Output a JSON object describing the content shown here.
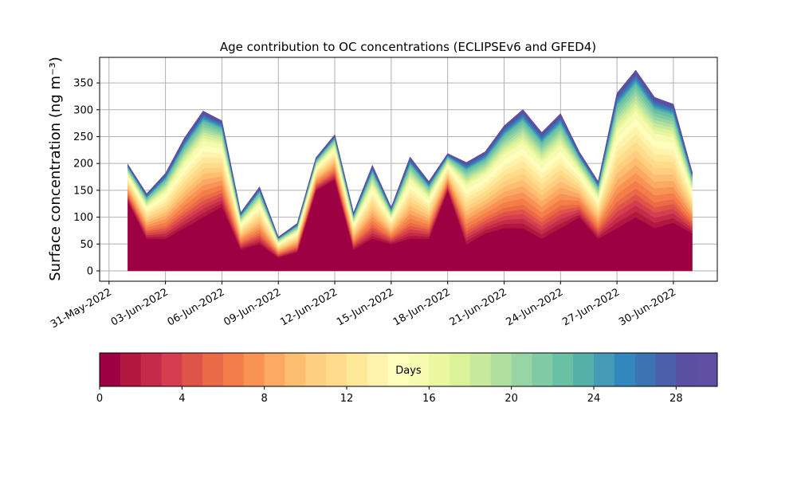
{
  "chart_data": {
    "type": "stacked_area",
    "title": "Age contribution to OC concentrations (ECLIPSEv6 and GFED4)",
    "y_label": "Surface concentration (ng m⁻³)",
    "x": [
      "2022-06-01",
      "2022-06-02",
      "2022-06-03",
      "2022-06-04",
      "2022-06-05",
      "2022-06-06",
      "2022-06-07",
      "2022-06-08",
      "2022-06-09",
      "2022-06-10",
      "2022-06-11",
      "2022-06-12",
      "2022-06-13",
      "2022-06-14",
      "2022-06-15",
      "2022-06-16",
      "2022-06-17",
      "2022-06-18",
      "2022-06-19",
      "2022-06-20",
      "2022-06-21",
      "2022-06-22",
      "2022-06-23",
      "2022-06-24",
      "2022-06-25",
      "2022-06-26",
      "2022-06-27",
      "2022-06-28",
      "2022-06-29",
      "2022-06-30",
      "2022-07-01"
    ],
    "xlim": [
      "2022-05-30T12:00:00Z",
      "2022-07-02T08:00:00Z"
    ],
    "xticks": [
      {
        "value": "2022-05-31",
        "label": "31-May-2022"
      },
      {
        "value": "2022-06-03",
        "label": "03-Jun-2022"
      },
      {
        "value": "2022-06-06",
        "label": "06-Jun-2022"
      },
      {
        "value": "2022-06-09",
        "label": "09-Jun-2022"
      },
      {
        "value": "2022-06-12",
        "label": "12-Jun-2022"
      },
      {
        "value": "2022-06-15",
        "label": "15-Jun-2022"
      },
      {
        "value": "2022-06-18",
        "label": "18-Jun-2022"
      },
      {
        "value": "2022-06-21",
        "label": "21-Jun-2022"
      },
      {
        "value": "2022-06-24",
        "label": "24-Jun-2022"
      },
      {
        "value": "2022-06-27",
        "label": "27-Jun-2022"
      },
      {
        "value": "2022-06-30",
        "label": "30-Jun-2022"
      }
    ],
    "ylim": [
      -19.3,
      397.6
    ],
    "yticks": [
      0,
      50,
      100,
      150,
      200,
      250,
      300,
      350
    ],
    "grid": true,
    "series": [
      {
        "color": "#9e0142",
        "values": [
          130,
          60,
          60,
          80,
          100,
          120,
          40,
          50,
          25,
          35,
          150,
          170,
          40,
          60,
          50,
          60,
          60,
          150,
          50,
          70,
          80,
          80,
          60,
          80,
          100,
          60,
          80,
          100,
          80,
          90,
          70
        ]
      },
      {
        "color": "#b2173f",
        "values": [
          2.7,
          3.3,
          4.8,
          6.6,
          7.8,
          6.3,
          2.7,
          4.2,
          1.5,
          2.1,
          2.4,
          3.3,
          2.7,
          5.4,
          2.7,
          6.0,
          4.2,
          2.7,
          6.0,
          6.0,
          7.5,
          8.7,
          7.8,
          8.4,
          4.8,
          4.2,
          9.9,
          10.8,
          9.6,
          8.7,
          4.5
        ]
      },
      {
        "color": "#c42b4a",
        "values": [
          2.7,
          3.3,
          4.8,
          6.6,
          7.8,
          6.3,
          2.7,
          4.2,
          1.5,
          2.1,
          2.4,
          3.3,
          2.7,
          5.4,
          2.7,
          6.0,
          4.2,
          2.7,
          6.0,
          6.0,
          7.5,
          8.7,
          7.8,
          8.4,
          4.8,
          4.2,
          9.9,
          10.8,
          9.6,
          8.7,
          4.5
        ]
      },
      {
        "color": "#d53e4f",
        "values": [
          2.7,
          3.3,
          4.8,
          6.6,
          7.8,
          6.3,
          2.7,
          4.2,
          1.5,
          2.1,
          2.4,
          3.3,
          2.7,
          5.4,
          2.7,
          6.0,
          4.2,
          2.7,
          6.0,
          6.0,
          7.5,
          8.7,
          7.8,
          8.4,
          4.8,
          4.2,
          9.9,
          10.8,
          9.6,
          8.7,
          4.5
        ]
      },
      {
        "color": "#e05347",
        "values": [
          2.7,
          3.3,
          4.8,
          6.6,
          7.8,
          6.3,
          2.7,
          4.2,
          1.5,
          2.1,
          2.4,
          3.3,
          2.7,
          5.4,
          2.7,
          6.0,
          4.2,
          2.7,
          6.0,
          6.0,
          7.5,
          8.7,
          7.8,
          8.4,
          4.8,
          4.2,
          9.9,
          10.8,
          9.6,
          8.7,
          4.5
        ]
      },
      {
        "color": "#ea6a47",
        "values": [
          2.7,
          3.3,
          4.8,
          6.6,
          7.8,
          6.3,
          2.7,
          4.2,
          1.5,
          2.1,
          2.4,
          3.3,
          2.7,
          5.4,
          2.7,
          6.0,
          4.2,
          2.7,
          6.0,
          6.0,
          7.5,
          8.7,
          7.8,
          8.4,
          4.8,
          4.2,
          9.9,
          10.8,
          9.6,
          8.7,
          4.5
        ]
      },
      {
        "color": "#f57d4a",
        "values": [
          3.6,
          4.4,
          6.4,
          8.8,
          10.4,
          8.4,
          3.6,
          5.6,
          2.0,
          2.8,
          3.2,
          4.4,
          3.6,
          7.2,
          3.6,
          8.0,
          5.6,
          3.6,
          8.0,
          8.0,
          10.0,
          11.6,
          10.4,
          11.2,
          6.4,
          5.6,
          13.2,
          14.4,
          12.8,
          11.6,
          6.0
        ]
      },
      {
        "color": "#f89355",
        "values": [
          3.6,
          4.4,
          6.4,
          8.8,
          10.4,
          8.4,
          3.6,
          5.6,
          2.0,
          2.8,
          3.2,
          4.4,
          3.6,
          7.2,
          3.6,
          8.0,
          5.6,
          3.6,
          8.0,
          8.0,
          10.0,
          11.6,
          10.4,
          11.2,
          6.4,
          5.6,
          13.2,
          14.4,
          12.8,
          11.6,
          6.0
        ]
      },
      {
        "color": "#fca965",
        "values": [
          3.6,
          4.4,
          6.4,
          8.8,
          10.4,
          8.4,
          3.6,
          5.6,
          2.0,
          2.8,
          3.2,
          4.4,
          3.6,
          7.2,
          3.6,
          8.0,
          5.6,
          3.6,
          8.0,
          8.0,
          10.0,
          11.6,
          10.4,
          11.2,
          6.4,
          5.6,
          13.2,
          14.4,
          12.8,
          11.6,
          6.0
        ]
      },
      {
        "color": "#fdbe71",
        "values": [
          3.6,
          4.4,
          6.4,
          8.8,
          10.4,
          8.4,
          3.6,
          5.6,
          2.0,
          2.8,
          3.2,
          4.4,
          3.6,
          7.2,
          3.6,
          8.0,
          5.6,
          3.6,
          8.0,
          8.0,
          10.0,
          11.6,
          10.4,
          11.2,
          6.4,
          5.6,
          13.2,
          14.4,
          12.8,
          11.6,
          6.0
        ]
      },
      {
        "color": "#fecf80",
        "values": [
          3.6,
          4.4,
          6.4,
          8.8,
          10.4,
          8.4,
          3.6,
          5.6,
          2.0,
          2.8,
          3.2,
          4.4,
          3.6,
          7.2,
          3.6,
          8.0,
          5.6,
          3.6,
          8.0,
          8.0,
          10.0,
          11.6,
          10.4,
          11.2,
          6.4,
          5.6,
          13.2,
          14.4,
          12.8,
          11.6,
          6.0
        ]
      },
      {
        "color": "#fedc8c",
        "values": [
          3.6,
          4.4,
          6.4,
          8.8,
          10.4,
          8.4,
          3.6,
          5.6,
          2.0,
          2.8,
          3.2,
          4.4,
          3.6,
          7.2,
          3.6,
          8.0,
          5.6,
          3.6,
          8.0,
          8.0,
          10.0,
          11.6,
          10.4,
          11.2,
          6.4,
          5.6,
          13.2,
          14.4,
          12.8,
          11.6,
          6.0
        ]
      },
      {
        "color": "#fee89a",
        "values": [
          3.6,
          4.4,
          6.4,
          8.8,
          10.4,
          8.4,
          3.6,
          5.6,
          2.0,
          2.8,
          3.2,
          4.4,
          3.6,
          7.2,
          3.6,
          8.0,
          5.6,
          3.6,
          8.0,
          8.0,
          10.0,
          11.6,
          10.4,
          11.2,
          6.4,
          5.6,
          13.2,
          14.4,
          12.8,
          11.6,
          6.0
        ]
      },
      {
        "color": "#fff3ad",
        "values": [
          3.6,
          4.4,
          6.4,
          8.8,
          10.4,
          8.4,
          3.6,
          5.6,
          2.0,
          2.8,
          3.2,
          4.4,
          3.6,
          7.2,
          3.6,
          8.0,
          5.6,
          3.6,
          8.0,
          8.0,
          10.0,
          11.6,
          10.4,
          11.2,
          6.4,
          5.6,
          13.2,
          14.4,
          12.8,
          11.6,
          6.0
        ]
      },
      {
        "color": "#fefebd",
        "values": [
          3.6,
          4.4,
          6.4,
          8.8,
          10.4,
          8.4,
          3.6,
          5.6,
          2.0,
          2.8,
          3.2,
          4.4,
          3.6,
          7.2,
          3.6,
          8.0,
          5.6,
          3.6,
          8.0,
          8.0,
          10.0,
          11.6,
          10.4,
          11.2,
          6.4,
          5.6,
          13.2,
          14.4,
          12.8,
          11.6,
          6.0
        ]
      },
      {
        "color": "#f7fbb2",
        "values": [
          3.6,
          4.4,
          6.4,
          8.8,
          10.4,
          8.4,
          3.6,
          5.6,
          2.0,
          2.8,
          3.2,
          4.4,
          3.6,
          7.2,
          3.6,
          8.0,
          5.6,
          3.6,
          8.0,
          8.0,
          10.0,
          11.6,
          10.4,
          11.2,
          6.4,
          5.6,
          13.2,
          14.4,
          12.8,
          11.6,
          6.0
        ]
      },
      {
        "color": "#eaf79e",
        "values": [
          1.8,
          2.2,
          3.2,
          4.4,
          5.2,
          4.2,
          1.8,
          2.8,
          1.0,
          1.4,
          1.6,
          2.2,
          1.8,
          3.6,
          1.8,
          4.0,
          2.8,
          1.8,
          4.0,
          4.0,
          5.0,
          5.8,
          5.2,
          5.6,
          3.2,
          2.8,
          6.6,
          7.2,
          6.4,
          5.8,
          3.0
        ]
      },
      {
        "color": "#dbf19a",
        "values": [
          1.8,
          2.2,
          3.2,
          4.4,
          5.2,
          4.2,
          1.8,
          2.8,
          1.0,
          1.4,
          1.6,
          2.2,
          1.8,
          3.6,
          1.8,
          4.0,
          2.8,
          1.8,
          4.0,
          4.0,
          5.0,
          5.8,
          5.2,
          5.6,
          3.2,
          2.8,
          6.6,
          7.2,
          6.4,
          5.8,
          3.0
        ]
      },
      {
        "color": "#c7e99e",
        "values": [
          1.8,
          2.2,
          3.2,
          4.4,
          5.2,
          4.2,
          1.8,
          2.8,
          1.0,
          1.4,
          1.6,
          2.2,
          1.8,
          3.6,
          1.8,
          4.0,
          2.8,
          1.8,
          4.0,
          4.0,
          5.0,
          5.8,
          5.2,
          5.6,
          3.2,
          2.8,
          6.6,
          7.2,
          6.4,
          5.8,
          3.0
        ]
      },
      {
        "color": "#b1df9e",
        "values": [
          1.8,
          2.2,
          3.2,
          4.4,
          5.2,
          4.2,
          1.8,
          2.8,
          1.0,
          1.4,
          1.6,
          2.2,
          1.8,
          3.6,
          1.8,
          4.0,
          2.8,
          1.8,
          4.0,
          4.0,
          5.0,
          5.8,
          5.2,
          5.6,
          3.2,
          2.8,
          6.6,
          7.2,
          6.4,
          5.8,
          3.0
        ]
      },
      {
        "color": "#98d5a4",
        "values": [
          1.8,
          2.2,
          3.2,
          4.4,
          5.2,
          4.2,
          1.8,
          2.8,
          1.0,
          1.4,
          1.6,
          2.2,
          1.8,
          3.6,
          1.8,
          4.0,
          2.8,
          1.8,
          4.0,
          4.0,
          5.0,
          5.8,
          5.2,
          5.6,
          3.2,
          2.8,
          6.6,
          7.2,
          6.4,
          5.8,
          3.0
        ]
      },
      {
        "color": "#80cba4",
        "values": [
          1.8,
          2.2,
          3.2,
          4.4,
          5.2,
          4.2,
          1.8,
          2.8,
          1.0,
          1.4,
          1.6,
          2.2,
          1.8,
          3.6,
          1.8,
          4.0,
          2.8,
          1.8,
          4.0,
          4.0,
          5.0,
          5.8,
          5.2,
          5.6,
          3.2,
          2.8,
          6.6,
          7.2,
          6.4,
          5.8,
          3.0
        ]
      },
      {
        "color": "#69c0a5",
        "values": [
          1.8,
          2.2,
          3.2,
          4.4,
          5.2,
          4.2,
          1.8,
          2.8,
          1.0,
          1.4,
          1.6,
          2.2,
          1.8,
          3.6,
          1.8,
          4.0,
          2.8,
          1.8,
          4.0,
          4.0,
          5.0,
          5.8,
          5.2,
          5.6,
          3.2,
          2.8,
          6.6,
          7.2,
          6.4,
          5.8,
          3.0
        ]
      },
      {
        "color": "#55b0a9",
        "values": [
          0.9,
          1.1,
          1.6,
          2.2,
          2.6,
          2.1,
          0.9,
          1.4,
          0.5,
          0.7,
          0.8,
          1.1,
          0.9,
          1.8,
          0.9,
          2.0,
          1.4,
          0.9,
          2.0,
          2.0,
          2.5,
          2.9,
          2.6,
          2.8,
          1.6,
          1.4,
          3.3,
          3.6,
          3.2,
          2.9,
          1.5
        ]
      },
      {
        "color": "#439bb5",
        "values": [
          0.9,
          1.1,
          1.6,
          2.2,
          2.6,
          2.1,
          0.9,
          1.4,
          0.5,
          0.7,
          0.8,
          1.1,
          0.9,
          1.8,
          0.9,
          2.0,
          1.4,
          0.9,
          2.0,
          2.0,
          2.5,
          2.9,
          2.6,
          2.8,
          1.6,
          1.4,
          3.3,
          3.6,
          3.2,
          2.9,
          1.5
        ]
      },
      {
        "color": "#3288bd",
        "values": [
          0.9,
          1.1,
          1.6,
          2.2,
          2.6,
          2.1,
          0.9,
          1.4,
          0.5,
          0.7,
          0.8,
          1.1,
          0.9,
          1.8,
          0.9,
          2.0,
          1.4,
          0.9,
          2.0,
          2.0,
          2.5,
          2.9,
          2.6,
          2.8,
          1.6,
          1.4,
          3.3,
          3.6,
          3.2,
          2.9,
          1.5
        ]
      },
      {
        "color": "#3c74b2",
        "values": [
          0.9,
          1.1,
          1.6,
          2.2,
          2.6,
          2.1,
          0.9,
          1.4,
          0.5,
          0.7,
          0.8,
          1.1,
          0.9,
          1.8,
          0.9,
          2.0,
          1.4,
          0.9,
          2.0,
          2.0,
          2.5,
          2.9,
          2.6,
          2.8,
          1.6,
          1.4,
          3.3,
          3.6,
          3.2,
          2.9,
          1.5
        ]
      },
      {
        "color": "#4c60a9",
        "values": [
          0.9,
          1.1,
          1.6,
          2.2,
          2.6,
          2.1,
          0.9,
          1.4,
          0.5,
          0.7,
          0.8,
          1.1,
          0.9,
          1.8,
          0.9,
          2.0,
          1.4,
          0.9,
          2.0,
          2.0,
          2.5,
          2.9,
          2.6,
          2.8,
          1.6,
          1.4,
          3.3,
          3.6,
          3.2,
          2.9,
          1.5
        ]
      },
      {
        "color": "#5a4fa1",
        "values": [
          0.9,
          1.1,
          1.6,
          2.2,
          2.6,
          2.1,
          0.9,
          1.4,
          0.5,
          0.7,
          0.8,
          1.1,
          0.9,
          1.8,
          0.9,
          2.0,
          1.4,
          0.9,
          2.0,
          2.0,
          2.5,
          2.9,
          2.6,
          2.8,
          1.6,
          1.4,
          3.3,
          3.6,
          3.2,
          2.9,
          1.5
        ]
      },
      {
        "color": "#5e4fa2",
        "values": [
          0.9,
          1.1,
          1.6,
          2.2,
          2.6,
          2.1,
          0.9,
          1.4,
          0.5,
          0.7,
          0.8,
          1.1,
          0.9,
          1.8,
          0.9,
          2.0,
          1.4,
          0.9,
          2.0,
          2.0,
          2.5,
          2.9,
          2.6,
          2.8,
          1.6,
          1.4,
          3.3,
          3.6,
          3.2,
          2.9,
          1.5
        ]
      }
    ],
    "colorbar": {
      "label": "Days",
      "lim": [
        0,
        30
      ],
      "ticks": [
        0,
        4,
        8,
        12,
        16,
        20,
        24,
        28
      ]
    }
  }
}
